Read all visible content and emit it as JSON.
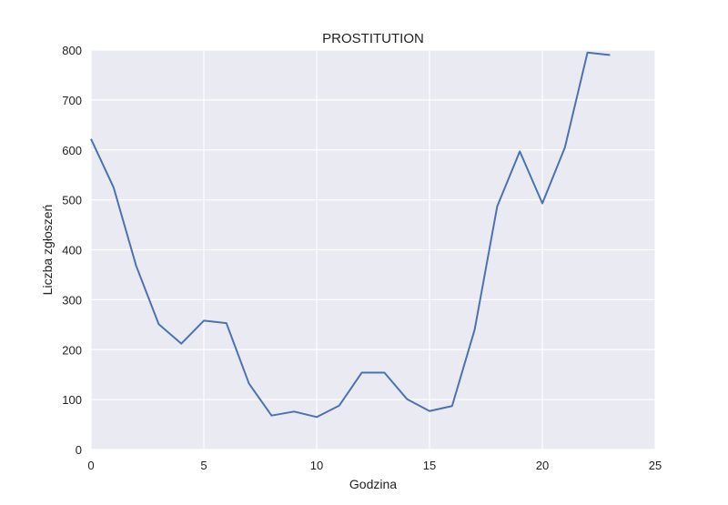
{
  "chart_data": {
    "type": "line",
    "title": "PROSTITUTION",
    "xlabel": "Godzina",
    "ylabel": "Liczba zgłoszeń",
    "xlim": [
      0,
      25
    ],
    "ylim": [
      0,
      800
    ],
    "xticks": [
      0,
      5,
      10,
      15,
      20,
      25
    ],
    "yticks": [
      0,
      100,
      200,
      300,
      400,
      500,
      600,
      700,
      800
    ],
    "xtick_labels": [
      "0",
      "5",
      "10",
      "15",
      "20",
      "25"
    ],
    "ytick_labels": [
      "0",
      "100",
      "200",
      "300",
      "400",
      "500",
      "600",
      "700",
      "800"
    ],
    "grid": true,
    "colors": {
      "background": "#EAEAF2",
      "grid": "#FFFFFF",
      "line": "#4C72B0"
    },
    "series": [
      {
        "x": [
          0,
          1,
          2,
          3,
          4,
          5,
          6,
          7,
          8,
          9,
          10,
          11,
          12,
          13,
          14,
          15,
          16,
          17,
          18,
          19,
          20,
          21,
          22,
          23
        ],
        "values": [
          622,
          525,
          368,
          251,
          212,
          258,
          253,
          132,
          68,
          76,
          65,
          88,
          154,
          154,
          101,
          77,
          87,
          240,
          487,
          597,
          493,
          605,
          795,
          790
        ]
      }
    ]
  }
}
